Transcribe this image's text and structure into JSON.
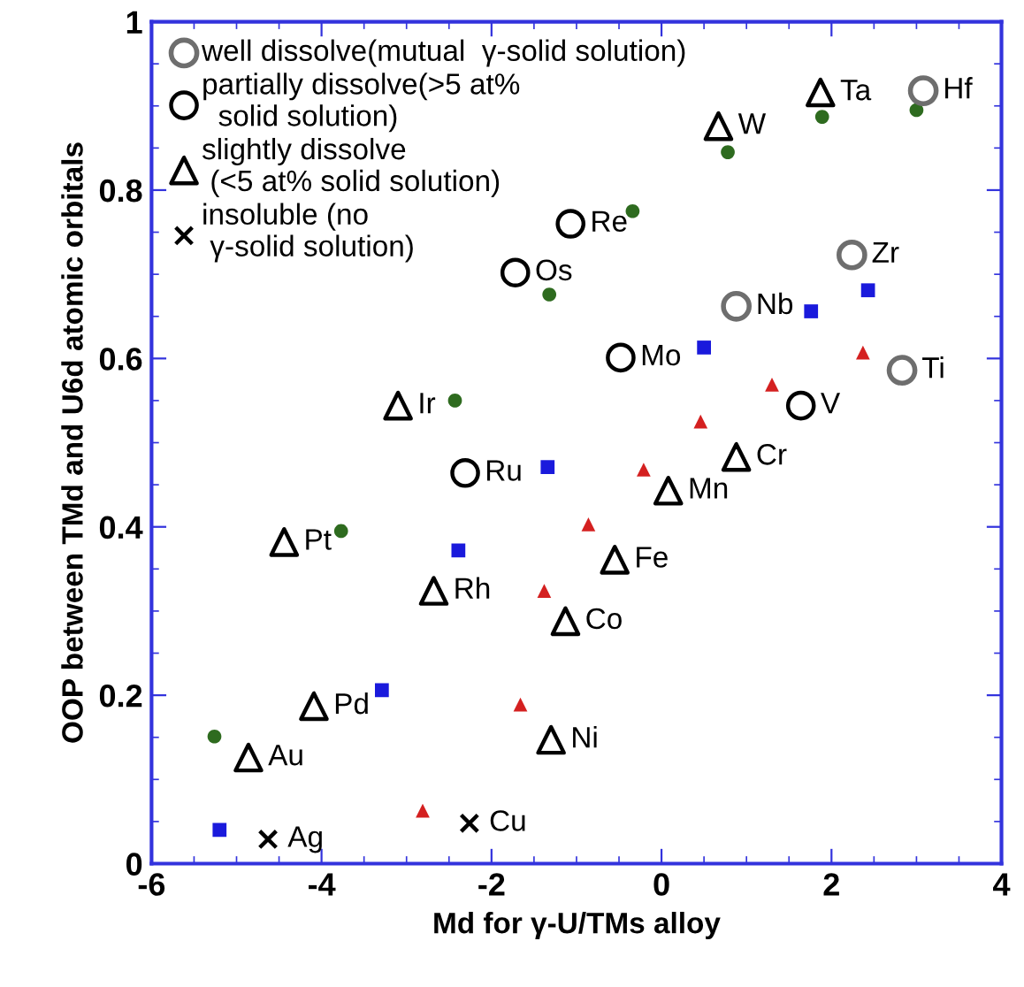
{
  "chart_data": {
    "type": "scatter",
    "xlabel": "Md for γ-U/TMs alloy",
    "ylabel": "OOP between TMd and U6d atomic orbitals",
    "xlim": [
      -6,
      4
    ],
    "ylim": [
      0,
      1
    ],
    "xticks": [
      -6,
      -4,
      -2,
      0,
      2,
      4
    ],
    "yticks": [
      0,
      0.2,
      0.4,
      0.6,
      0.8,
      1
    ],
    "grid": false,
    "legend": "top left",
    "series": [
      {
        "color": "#2e6b1f",
        "marker": "circle",
        "x": [
          -5.26,
          -3.77,
          -2.43,
          -1.32,
          -0.34,
          0.78,
          1.89,
          3.0
        ],
        "values": [
          0.151,
          0.395,
          0.55,
          0.676,
          0.775,
          0.845,
          0.887,
          0.895
        ]
      },
      {
        "color": "#1a1adc",
        "marker": "square",
        "x": [
          -5.2,
          -3.29,
          -2.39,
          -1.34,
          0.5,
          1.76,
          2.43
        ],
        "values": [
          0.04,
          0.206,
          0.372,
          0.471,
          0.613,
          0.656,
          0.681
        ]
      },
      {
        "color": "#d42020",
        "marker": "triangle",
        "x": [
          -2.81,
          -1.66,
          -1.38,
          -0.86,
          -0.21,
          0.46,
          1.3,
          2.37
        ],
        "values": [
          0.063,
          0.189,
          0.324,
          0.403,
          0.468,
          0.525,
          0.569,
          0.607
        ]
      },
      {
        "name": "well dissolve(mutual  γ-solid solution)",
        "color": "#6e6e6e",
        "marker": "circle",
        "x": [
          3.08,
          2.24,
          0.88,
          2.83
        ],
        "values": [
          0.918,
          0.723,
          0.662,
          0.586
        ],
        "value_labels": [
          "Hf",
          "Zr",
          "Nb",
          "Ti"
        ]
      },
      {
        "name": "partially dissolve(>5 at%\n  solid solution)",
        "color": "#000000",
        "marker": "circle",
        "x": [
          -1.07,
          -1.72,
          -0.48,
          1.64,
          -2.31
        ],
        "values": [
          0.76,
          0.702,
          0.601,
          0.544,
          0.464
        ],
        "value_labels": [
          "Re",
          "Os",
          "Mo",
          "V",
          "Ru"
        ]
      },
      {
        "name": "slightly dissolve\n (<5 at% solid solution)",
        "color": "#000000",
        "marker": "triangle",
        "x": [
          1.87,
          0.67,
          -3.1,
          -4.44,
          -2.68,
          -4.09,
          -4.86,
          -1.3,
          -1.13,
          -0.55,
          0.08,
          0.88
        ],
        "values": [
          0.916,
          0.876,
          0.544,
          0.382,
          0.324,
          0.187,
          0.126,
          0.147,
          0.288,
          0.361,
          0.443,
          0.483
        ],
        "value_labels": [
          "Ta",
          "W",
          "Ir",
          "Pt",
          "Rh",
          "Pd",
          "Au",
          "Ni",
          "Co",
          "Fe",
          "Mn",
          "Cr"
        ]
      },
      {
        "name": "insoluble (no\n γ-solid solution)",
        "color": "#000000",
        "marker": "cross",
        "x": [
          -4.63,
          -2.26
        ],
        "values": [
          0.029,
          0.048
        ],
        "value_labels": [
          "Ag",
          "Cu"
        ]
      }
    ]
  }
}
